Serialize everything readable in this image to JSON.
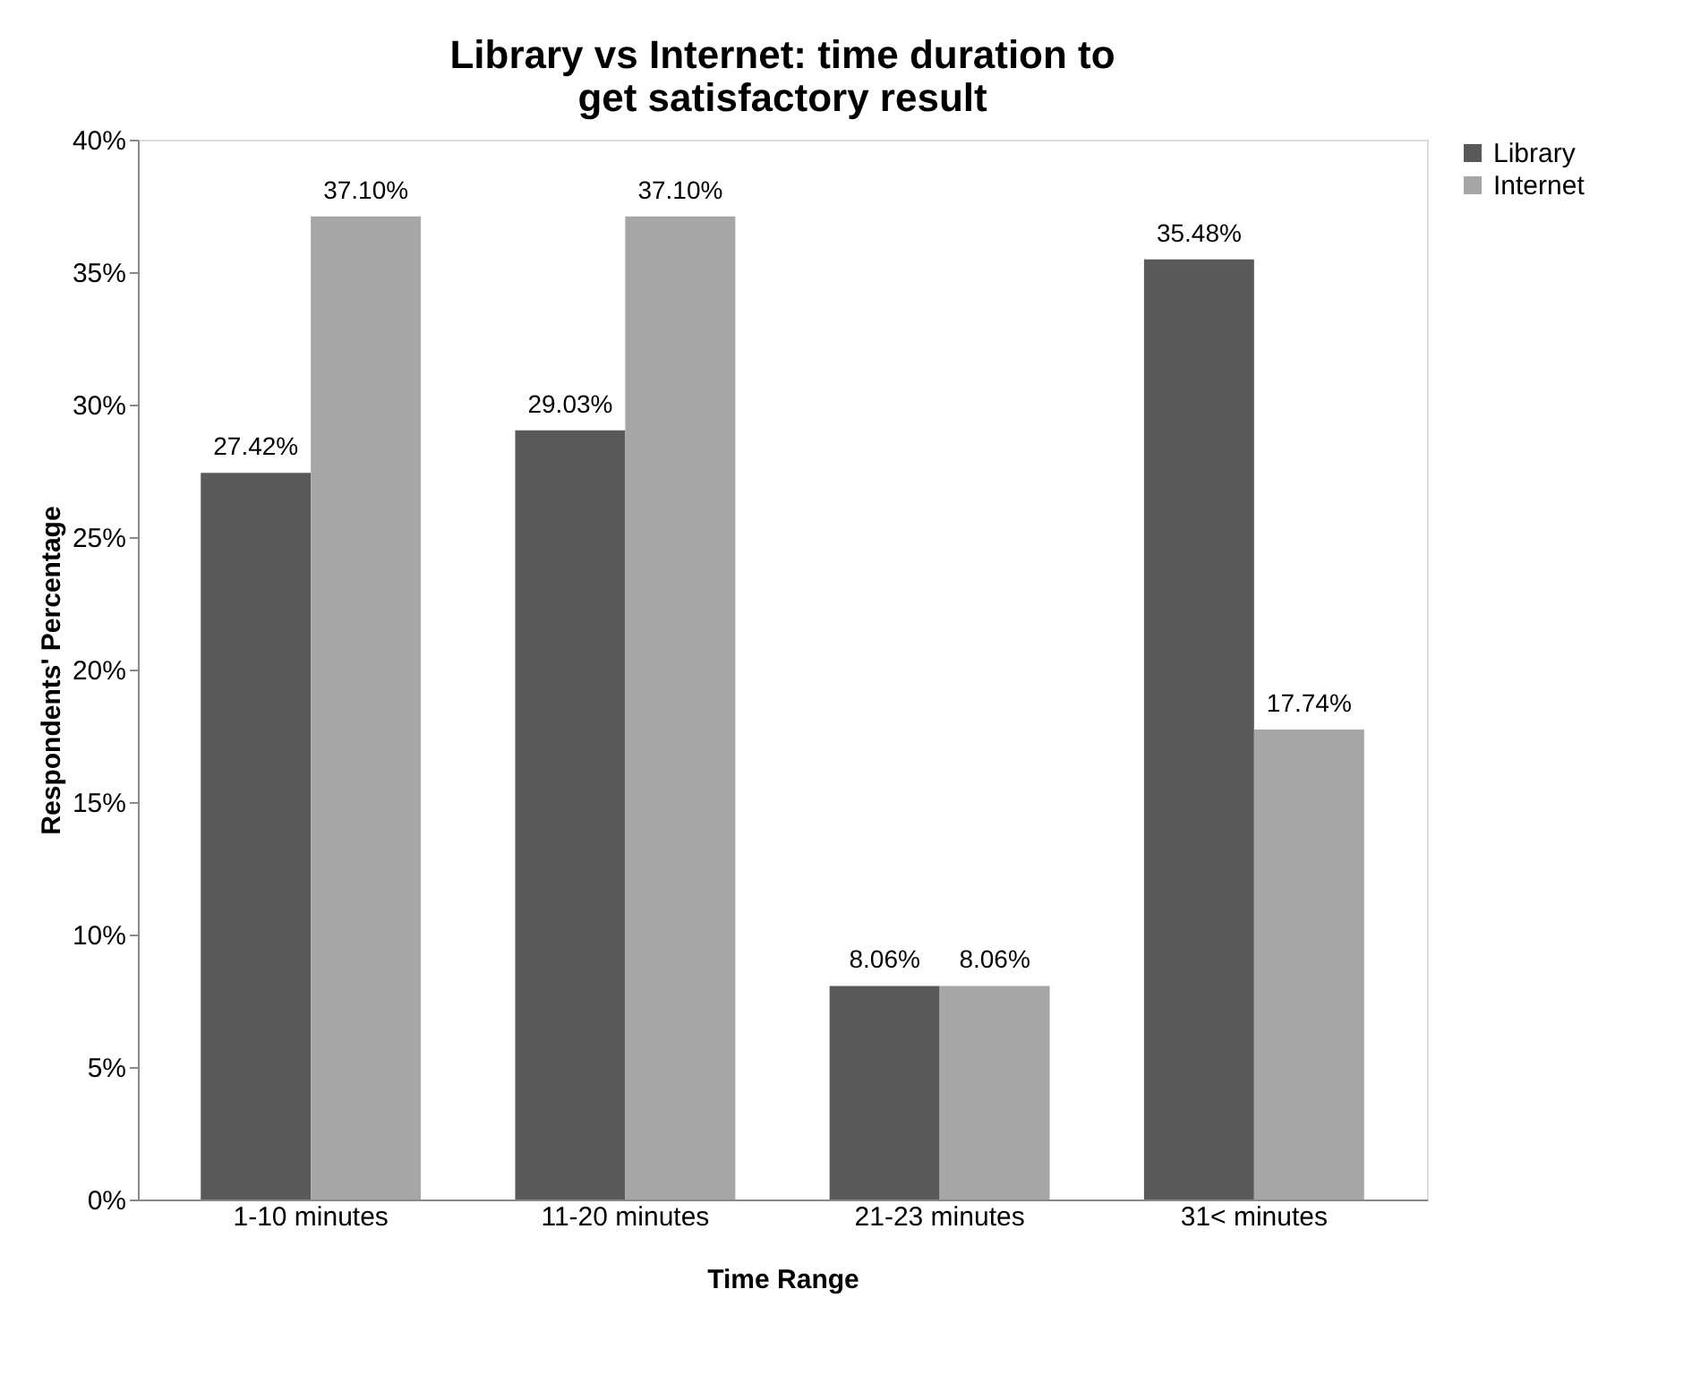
{
  "chart_data": {
    "type": "bar",
    "title": "Library vs Internet: time duration to get satisfactory result",
    "xlabel": "Time Range",
    "ylabel": "Respondents' Percentage",
    "categories": [
      "1-10 minutes",
      "11-20 minutes",
      "21-23 minutes",
      "31< minutes"
    ],
    "series": [
      {
        "name": "Library",
        "color": "#595959",
        "values": [
          27.42,
          29.03,
          8.06,
          35.48
        ],
        "value_labels": [
          "27.42%",
          "29.03%",
          "8.06%",
          "35.48%"
        ]
      },
      {
        "name": "Internet",
        "color": "#a6a6a6",
        "values": [
          37.1,
          37.1,
          8.06,
          17.74
        ],
        "value_labels": [
          "37.10%",
          "37.10%",
          "8.06%",
          "17.74%"
        ]
      }
    ],
    "ylim": [
      0,
      40
    ],
    "yticks": [
      {
        "value": 0,
        "label": "0%"
      },
      {
        "value": 5,
        "label": "5%"
      },
      {
        "value": 10,
        "label": "10%"
      },
      {
        "value": 15,
        "label": "15%"
      },
      {
        "value": 20,
        "label": "20%"
      },
      {
        "value": 25,
        "label": "25%"
      },
      {
        "value": 30,
        "label": "30%"
      },
      {
        "value": 35,
        "label": "35%"
      },
      {
        "value": 40,
        "label": "40%"
      }
    ],
    "grid": false,
    "legend": "right"
  }
}
